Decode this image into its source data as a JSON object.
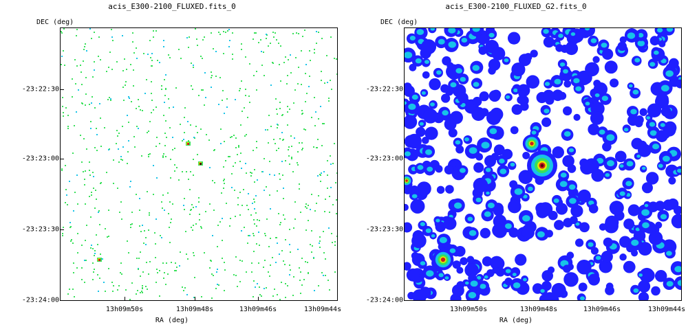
{
  "panels": [
    {
      "title": "acis_E300-2100_FLUXED.fits_0",
      "dec_label": "DEC (deg)",
      "ra_label": "RA (deg)",
      "y_ticks": [
        "-23:22:30",
        "-23:23:00",
        "-23:23:30",
        "-23:24:00"
      ],
      "x_ticks": [
        "13h09m50s",
        "13h09m48s",
        "13h09m46s",
        "13h09m44s"
      ],
      "image_style": "sparse-counts"
    },
    {
      "title": "acis_E300-2100_FLUXED_G2.fits_0",
      "dec_label": "DEC (deg)",
      "ra_label": "RA (deg)",
      "y_ticks": [
        "-23:22:30",
        "-23:23:00",
        "-23:23:30",
        "-23:24:00"
      ],
      "x_ticks": [
        "13h09m50s",
        "13h09m48s",
        "13h09m46s",
        "13h09m44s"
      ],
      "image_style": "gaussian-smoothed"
    }
  ],
  "colors": {
    "background": "#ffffff",
    "low": "#1f1fff",
    "mid": "#17c3e8",
    "high": "#39e05a",
    "peak_yellow": "#e6e600",
    "peak_red": "#c81e1e",
    "core": "#5a0000"
  }
}
